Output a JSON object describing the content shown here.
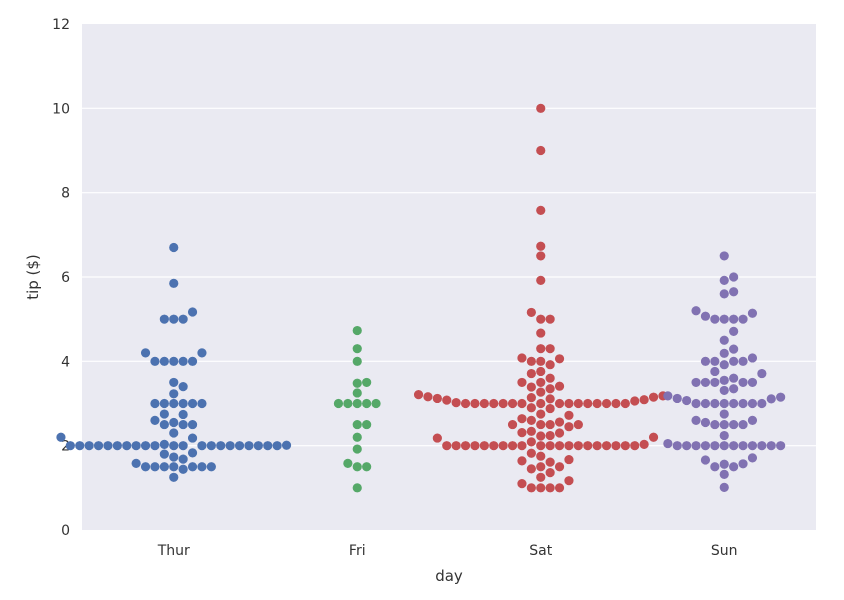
{
  "chart_data": {
    "type": "scatter",
    "subtype": "swarm",
    "title": "",
    "xlabel": "day",
    "ylabel": "tip ($)",
    "categories": [
      "Thur",
      "Fri",
      "Sat",
      "Sun"
    ],
    "ylim": [
      0,
      12
    ],
    "yticks": [
      "0",
      "2",
      "4",
      "6",
      "8",
      "10",
      "12"
    ],
    "grid": true,
    "legend": "none",
    "background": "#eaeaf2",
    "series": [
      {
        "category": "Thur",
        "color": "#4c72b0",
        "values": [
          1.25,
          1.44,
          1.5,
          1.5,
          1.5,
          1.5,
          1.5,
          1.5,
          1.5,
          1.58,
          1.68,
          1.73,
          1.8,
          1.83,
          2.0,
          2.0,
          2.0,
          2.0,
          2.0,
          2.0,
          2.0,
          2.0,
          2.0,
          2.0,
          2.0,
          2.0,
          2.0,
          2.0,
          2.0,
          2.0,
          2.0,
          2.0,
          2.0,
          2.0,
          2.0,
          2.01,
          2.03,
          2.18,
          2.2,
          2.3,
          2.5,
          2.5,
          2.5,
          2.55,
          2.6,
          2.74,
          2.75,
          3.0,
          3.0,
          3.0,
          3.0,
          3.0,
          3.0,
          3.23,
          3.4,
          3.5,
          4.0,
          4.0,
          4.0,
          4.0,
          4.0,
          4.2,
          4.2,
          5.0,
          5.0,
          5.0,
          5.17,
          5.85,
          6.7
        ]
      },
      {
        "category": "Fri",
        "color": "#55a868",
        "values": [
          1.0,
          1.5,
          1.5,
          1.58,
          1.92,
          2.2,
          2.5,
          2.5,
          3.0,
          3.0,
          3.0,
          3.0,
          3.0,
          3.25,
          3.48,
          3.5,
          4.0,
          4.3,
          4.73
        ]
      },
      {
        "category": "Sat",
        "color": "#c44e52",
        "values": [
          1.0,
          1.0,
          1.0,
          1.0,
          1.1,
          1.17,
          1.25,
          1.36,
          1.45,
          1.5,
          1.5,
          1.61,
          1.64,
          1.67,
          1.75,
          1.82,
          2.0,
          2.0,
          2.0,
          2.0,
          2.0,
          2.0,
          2.0,
          2.0,
          2.0,
          2.0,
          2.0,
          2.0,
          2.0,
          2.0,
          2.0,
          2.0,
          2.0,
          2.0,
          2.0,
          2.0,
          2.03,
          2.09,
          2.18,
          2.2,
          2.23,
          2.24,
          2.3,
          2.31,
          2.34,
          2.45,
          2.5,
          2.5,
          2.5,
          2.5,
          2.56,
          2.6,
          2.64,
          2.72,
          2.75,
          2.88,
          2.9,
          3.0,
          3.0,
          3.0,
          3.0,
          3.0,
          3.0,
          3.0,
          3.0,
          3.0,
          3.0,
          3.0,
          3.0,
          3.0,
          3.0,
          3.0,
          3.0,
          3.02,
          3.06,
          3.08,
          3.09,
          3.11,
          3.12,
          3.14,
          3.15,
          3.16,
          3.18,
          3.21,
          3.27,
          3.35,
          3.39,
          3.41,
          3.5,
          3.5,
          3.6,
          3.71,
          3.76,
          3.92,
          4.0,
          4.0,
          4.06,
          4.08,
          4.3,
          4.3,
          4.67,
          5.0,
          5.0,
          5.16,
          5.92,
          6.5,
          6.73,
          7.58,
          9.0,
          10.0
        ]
      },
      {
        "category": "Sun",
        "color": "#8172b2",
        "values": [
          1.01,
          1.32,
          1.5,
          1.5,
          1.56,
          1.57,
          1.66,
          1.71,
          2.0,
          2.0,
          2.0,
          2.0,
          2.0,
          2.0,
          2.0,
          2.0,
          2.0,
          2.0,
          2.0,
          2.0,
          2.05,
          2.24,
          2.5,
          2.5,
          2.5,
          2.5,
          2.55,
          2.6,
          2.6,
          2.75,
          3.0,
          3.0,
          3.0,
          3.0,
          3.0,
          3.0,
          3.0,
          3.0,
          3.07,
          3.11,
          3.12,
          3.15,
          3.18,
          3.31,
          3.35,
          3.5,
          3.5,
          3.5,
          3.5,
          3.5,
          3.55,
          3.6,
          3.71,
          3.76,
          3.92,
          4.0,
          4.0,
          4.0,
          4.0,
          4.08,
          4.19,
          4.29,
          4.5,
          4.71,
          5.0,
          5.0,
          5.0,
          5.0,
          5.07,
          5.14,
          5.2,
          5.6,
          5.65,
          5.92,
          6.0,
          6.5
        ]
      }
    ]
  }
}
